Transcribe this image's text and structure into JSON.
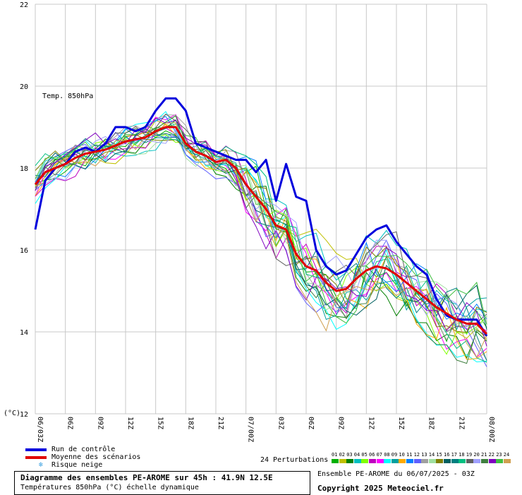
{
  "chart_data": {
    "type": "line",
    "title": "Diagramme des ensembles PE-AROME sur 45h : 41.9N 12.5E",
    "subtitle": "Températures 850hPa (°C) échelle dynamique",
    "inner_label": "Temp. 850hPa",
    "ylabel": "(°C)",
    "ylim": [
      12,
      22
    ],
    "yticks": [
      12,
      14,
      16,
      18,
      20,
      22
    ],
    "xlim": [
      3,
      48
    ],
    "xticks": [
      {
        "h": 3,
        "label": "06/03Z"
      },
      {
        "h": 6,
        "label": "06Z"
      },
      {
        "h": 9,
        "label": "09Z"
      },
      {
        "h": 12,
        "label": "12Z"
      },
      {
        "h": 15,
        "label": "15Z"
      },
      {
        "h": 18,
        "label": "18Z"
      },
      {
        "h": 21,
        "label": "21Z"
      },
      {
        "h": 24,
        "label": "07/00Z"
      },
      {
        "h": 27,
        "label": "03Z"
      },
      {
        "h": 30,
        "label": "06Z"
      },
      {
        "h": 33,
        "label": "09Z"
      },
      {
        "h": 36,
        "label": "12Z"
      },
      {
        "h": 39,
        "label": "15Z"
      },
      {
        "h": 42,
        "label": "18Z"
      },
      {
        "h": 45,
        "label": "21Z"
      },
      {
        "h": 48,
        "label": "08/00Z"
      }
    ],
    "grid": true,
    "series": [
      {
        "name": "Run de contrôle",
        "color": "#0000dd",
        "width": 3,
        "values": [
          [
            3,
            16.5
          ],
          [
            4,
            17.7
          ],
          [
            5,
            18.0
          ],
          [
            6,
            18.1
          ],
          [
            7,
            18.4
          ],
          [
            8,
            18.5
          ],
          [
            9,
            18.4
          ],
          [
            10,
            18.6
          ],
          [
            11,
            19.0
          ],
          [
            12,
            19.0
          ],
          [
            13,
            18.9
          ],
          [
            14,
            19.0
          ],
          [
            15,
            19.4
          ],
          [
            16,
            19.7
          ],
          [
            17,
            19.7
          ],
          [
            18,
            19.4
          ],
          [
            19,
            18.6
          ],
          [
            20,
            18.5
          ],
          [
            21,
            18.4
          ],
          [
            22,
            18.3
          ],
          [
            23,
            18.2
          ],
          [
            24,
            18.2
          ],
          [
            25,
            17.9
          ],
          [
            26,
            18.2
          ],
          [
            27,
            17.2
          ],
          [
            28,
            18.1
          ],
          [
            29,
            17.3
          ],
          [
            30,
            17.2
          ],
          [
            31,
            16.0
          ],
          [
            32,
            15.6
          ],
          [
            33,
            15.4
          ],
          [
            34,
            15.5
          ],
          [
            35,
            15.9
          ],
          [
            36,
            16.3
          ],
          [
            37,
            16.5
          ],
          [
            38,
            16.6
          ],
          [
            39,
            16.2
          ],
          [
            40,
            15.9
          ],
          [
            41,
            15.6
          ],
          [
            42,
            15.4
          ],
          [
            43,
            14.8
          ],
          [
            44,
            14.4
          ],
          [
            45,
            14.3
          ],
          [
            46,
            14.3
          ],
          [
            47,
            14.3
          ],
          [
            48,
            13.9
          ]
        ]
      },
      {
        "name": "Moyenne des scénarios",
        "color": "#e00000",
        "width": 3,
        "values": [
          [
            3,
            17.6
          ],
          [
            4,
            17.9
          ],
          [
            5,
            18.0
          ],
          [
            6,
            18.1
          ],
          [
            7,
            18.25
          ],
          [
            8,
            18.35
          ],
          [
            9,
            18.4
          ],
          [
            10,
            18.45
          ],
          [
            11,
            18.55
          ],
          [
            12,
            18.65
          ],
          [
            13,
            18.7
          ],
          [
            14,
            18.75
          ],
          [
            15,
            18.9
          ],
          [
            16,
            19.0
          ],
          [
            17,
            19.0
          ],
          [
            18,
            18.6
          ],
          [
            19,
            18.4
          ],
          [
            20,
            18.3
          ],
          [
            21,
            18.15
          ],
          [
            22,
            18.2
          ],
          [
            23,
            18.0
          ],
          [
            24,
            17.6
          ],
          [
            25,
            17.3
          ],
          [
            26,
            17.0
          ],
          [
            27,
            16.6
          ],
          [
            28,
            16.5
          ],
          [
            29,
            15.9
          ],
          [
            30,
            15.6
          ],
          [
            31,
            15.5
          ],
          [
            32,
            15.2
          ],
          [
            33,
            15.0
          ],
          [
            34,
            15.05
          ],
          [
            35,
            15.3
          ],
          [
            36,
            15.5
          ],
          [
            37,
            15.6
          ],
          [
            38,
            15.55
          ],
          [
            39,
            15.4
          ],
          [
            40,
            15.2
          ],
          [
            41,
            15.0
          ],
          [
            42,
            14.8
          ],
          [
            43,
            14.6
          ],
          [
            44,
            14.45
          ],
          [
            45,
            14.3
          ],
          [
            46,
            14.2
          ],
          [
            47,
            14.2
          ],
          [
            48,
            13.95
          ]
        ]
      }
    ]
  },
  "legend": {
    "control_label": "Run de contrôle",
    "mean_label": "Moyenne des scénarios",
    "snow_label": "Risque neige",
    "snow_icon": "snowflake-icon",
    "control_color": "#0000dd",
    "mean_color": "#e00000"
  },
  "perturbations": {
    "label": "24 Perturbations",
    "numbers": "01020304050607080910111213141516171819202122232 4",
    "colors": [
      "#00b000",
      "#c0c000",
      "#008000",
      "#00c0c0",
      "#80ff00",
      "#c000c0",
      "#ff00ff",
      "#00ffff",
      "#00a0a0",
      "#ffaa00",
      "#0080ff",
      "#6060ff",
      "#a0a0a0",
      "#a0e0a0",
      "#808000",
      "#006060",
      "#008080",
      "#00c080",
      "#606060",
      "#a0a0ff",
      "#408040",
      "#8000c0",
      "#40c040",
      "#d0a050"
    ]
  },
  "footer": {
    "ensemble_line": "Ensemble PE-AROME du 06/07/2025 - 03Z",
    "copyright": "Copyright 2025 Meteociel.fr"
  }
}
